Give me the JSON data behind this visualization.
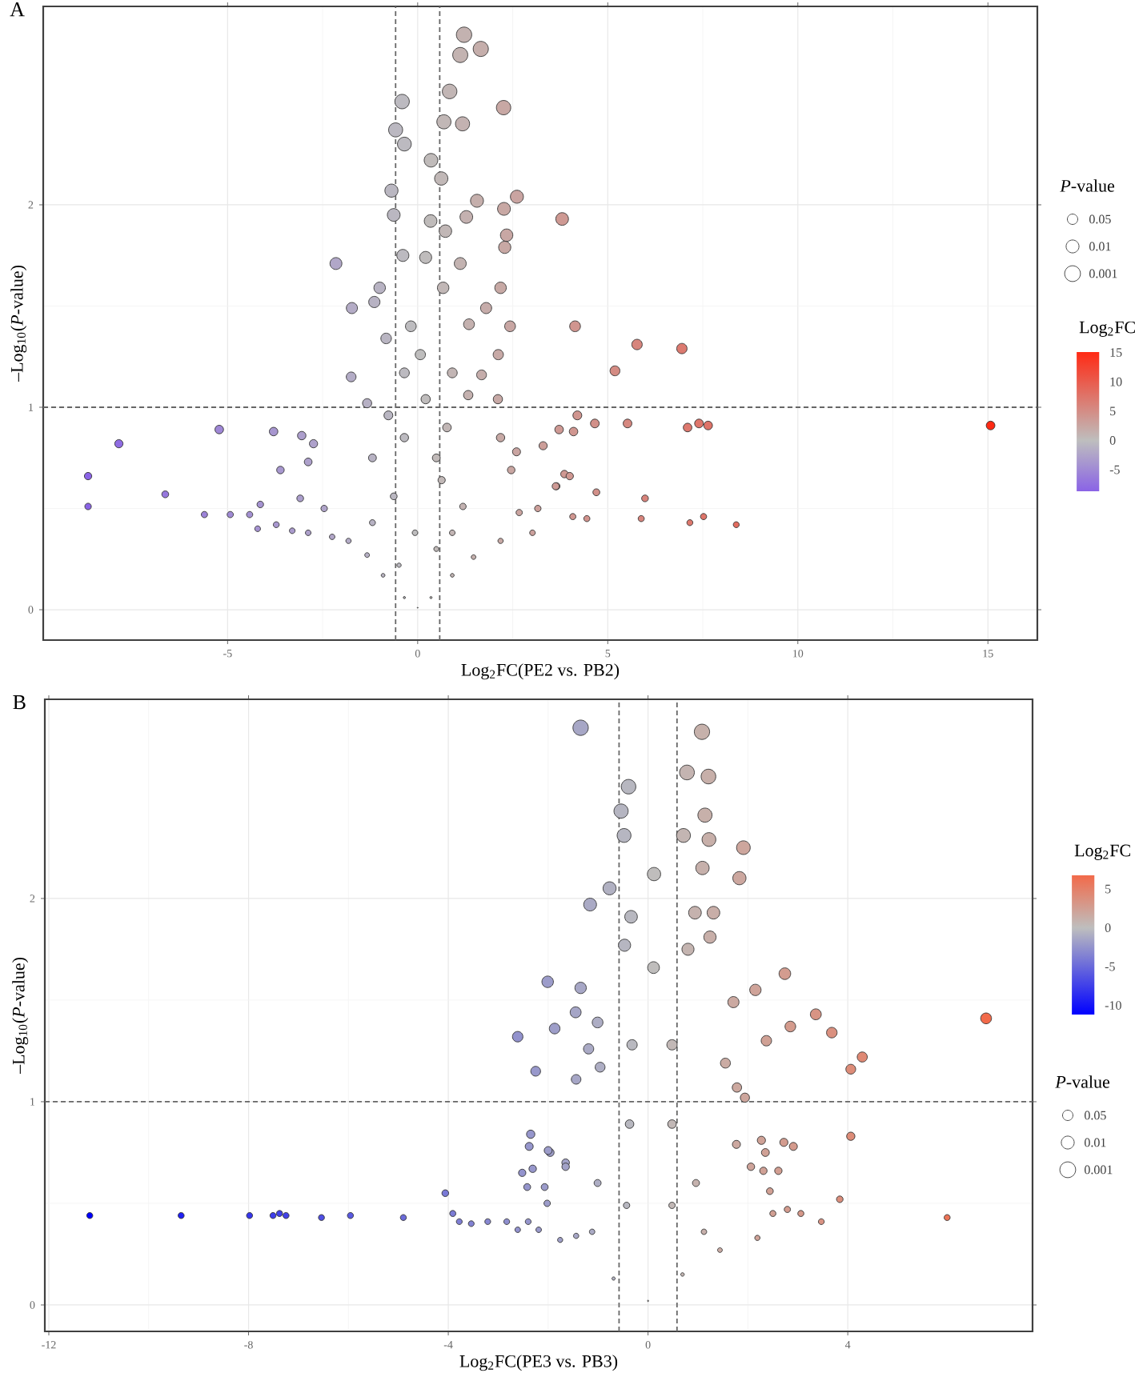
{
  "chart_data": [
    {
      "type": "bubble",
      "title": "A",
      "xlabel": "Log$_{2}$FC(PE2 vs. PB2)",
      "ylabel": "–Log$_{10}$(*P*-value)",
      "legend_title": "*P*-value",
      "clabel": "Log$_{2}$FC",
      "grid": true,
      "xlim": [
        -9.85,
        16.3
      ],
      "ylim": [
        -0.15,
        2.98
      ],
      "xticks": [
        -5,
        0,
        5,
        10,
        15
      ],
      "yticks": [
        0,
        1,
        2
      ],
      "clim": [
        -8.67,
        15.07
      ],
      "cticks": [
        -5,
        0,
        5,
        10,
        15
      ],
      "size_legend": [
        {
          "value": 1.3,
          "label": "0.05"
        },
        {
          "value": 2,
          "label": "0.01"
        },
        {
          "value": 3,
          "label": "0.001"
        }
      ],
      "ref_lines": [
        {
          "axis": "x",
          "value": -0.58,
          "line_style": "dashed"
        },
        {
          "axis": "x",
          "value": 0.58,
          "line_style": "dashed"
        },
        {
          "axis": "y",
          "value": 1,
          "line_style": "dashed"
        }
      ],
      "x": [
        1.22,
        1.66,
        1.12,
        0.84,
        -0.41,
        2.26,
        -0.58,
        0.69,
        1.18,
        -0.35,
        0.35,
        0.62,
        -0.69,
        2.61,
        1.56,
        2.27,
        -0.63,
        1.28,
        0.34,
        0.73,
        2.34,
        2.29,
        -2.15,
        -0.39,
        0.21,
        1.12,
        -1.0,
        0.67,
        2.18,
        -1.73,
        -1.14,
        1.8,
        -0.18,
        1.35,
        2.43,
        -0.83,
        0.07,
        2.12,
        -1.75,
        -0.35,
        0.91,
        1.68,
        -1.33,
        0.21,
        1.33,
        2.11,
        -5.22,
        -7.86,
        -3.79,
        -3.05,
        -2.74,
        -8.67,
        -8.67,
        -6.64,
        -3.61,
        -2.88,
        -5.61,
        -4.93,
        -4.42,
        -4.14,
        -4.21,
        -3.72,
        -3.3,
        -2.88,
        -3.09,
        -2.46,
        -2.25,
        -1.82,
        -1.33,
        -0.91,
        -0.35,
        0.0,
        0.35,
        0.91,
        1.47,
        2.18,
        3.02,
        2.67,
        3.16,
        3.3,
        2.6,
        2.18,
        2.46,
        3.65,
        3.86,
        -1.19,
        -0.63,
        -1.19,
        0.63,
        1.19,
        -0.07,
        0.49,
        -0.49,
        0.49,
        -0.35,
        0.77,
        -0.77,
        0.91,
        3.8,
        4.14,
        5.77,
        6.95,
        5.19,
        15.07,
        4.2,
        4.66,
        5.52,
        7.1,
        7.4,
        7.64,
        4.1,
        3.72,
        4.0,
        3.63,
        4.7,
        5.98,
        4.08,
        4.45,
        5.88,
        7.16,
        7.52,
        8.38
      ],
      "values": [
        2.84,
        2.77,
        2.74,
        2.56,
        2.51,
        2.48,
        2.37,
        2.41,
        2.4,
        2.3,
        2.22,
        2.13,
        2.07,
        2.04,
        2.02,
        1.98,
        1.95,
        1.94,
        1.92,
        1.87,
        1.85,
        1.79,
        1.71,
        1.75,
        1.74,
        1.71,
        1.59,
        1.59,
        1.59,
        1.49,
        1.52,
        1.49,
        1.4,
        1.41,
        1.4,
        1.34,
        1.26,
        1.26,
        1.15,
        1.17,
        1.17,
        1.16,
        1.02,
        1.04,
        1.06,
        1.04,
        0.89,
        0.82,
        0.88,
        0.86,
        0.82,
        0.66,
        0.51,
        0.57,
        0.69,
        0.73,
        0.47,
        0.47,
        0.47,
        0.52,
        0.4,
        0.42,
        0.39,
        0.38,
        0.55,
        0.5,
        0.36,
        0.34,
        0.27,
        0.17,
        0.06,
        0.01,
        0.06,
        0.17,
        0.26,
        0.34,
        0.38,
        0.48,
        0.5,
        0.81,
        0.78,
        0.85,
        0.69,
        0.61,
        0.67,
        0.75,
        0.56,
        0.43,
        0.64,
        0.51,
        0.38,
        0.3,
        0.22,
        0.75,
        0.85,
        0.9,
        0.96,
        0.38,
        1.93,
        1.4,
        1.31,
        1.29,
        1.18,
        0.91,
        0.96,
        0.92,
        0.92,
        0.9,
        0.92,
        0.91,
        0.88,
        0.89,
        0.66,
        0.61,
        0.58,
        0.55,
        0.46,
        0.45,
        0.45,
        0.43,
        0.46,
        0.42
      ],
      "sizes": [
        2.84,
        2.77,
        2.74,
        2.56,
        2.51,
        2.48,
        2.37,
        2.41,
        2.4,
        2.3,
        2.22,
        2.13,
        2.07,
        2.04,
        2.02,
        1.98,
        1.95,
        1.94,
        1.92,
        1.87,
        1.85,
        1.79,
        1.71,
        1.75,
        1.74,
        1.71,
        1.59,
        1.59,
        1.59,
        1.49,
        1.52,
        1.49,
        1.4,
        1.41,
        1.4,
        1.34,
        1.26,
        1.26,
        1.15,
        1.17,
        1.17,
        1.16,
        1.02,
        1.04,
        1.06,
        1.04,
        0.89,
        0.82,
        0.88,
        0.86,
        0.82,
        0.66,
        0.51,
        0.57,
        0.69,
        0.73,
        0.47,
        0.47,
        0.47,
        0.52,
        0.4,
        0.42,
        0.39,
        0.38,
        0.55,
        0.5,
        0.36,
        0.34,
        0.27,
        0.17,
        0.06,
        0.01,
        0.06,
        0.17,
        0.26,
        0.34,
        0.38,
        0.48,
        0.5,
        0.81,
        0.78,
        0.85,
        0.69,
        0.61,
        0.67,
        0.75,
        0.56,
        0.43,
        0.64,
        0.51,
        0.38,
        0.3,
        0.22,
        0.75,
        0.85,
        0.9,
        0.96,
        0.38,
        1.93,
        1.4,
        1.31,
        1.29,
        1.18,
        0.91,
        0.96,
        0.92,
        0.92,
        0.9,
        0.92,
        0.91,
        0.88,
        0.89,
        0.66,
        0.61,
        0.58,
        0.55,
        0.46,
        0.45,
        0.45,
        0.43,
        0.46,
        0.42
      ],
      "cvalues": [
        1.22,
        1.66,
        1.12,
        0.84,
        -0.41,
        2.26,
        -0.58,
        0.69,
        1.18,
        -0.35,
        0.35,
        0.62,
        -0.69,
        2.61,
        1.56,
        2.27,
        -0.63,
        1.28,
        0.34,
        0.73,
        2.34,
        2.29,
        -2.15,
        -0.39,
        0.21,
        1.12,
        -1.0,
        0.67,
        2.18,
        -1.73,
        -1.14,
        1.8,
        -0.18,
        1.35,
        2.43,
        -0.83,
        0.07,
        2.12,
        -1.75,
        -0.35,
        0.91,
        1.68,
        -1.33,
        0.21,
        1.33,
        2.11,
        -5.22,
        -7.86,
        -3.79,
        -3.05,
        -2.74,
        -8.67,
        -8.67,
        -6.64,
        -3.61,
        -2.88,
        -5.61,
        -4.93,
        -4.42,
        -4.14,
        -4.21,
        -3.72,
        -3.3,
        -2.88,
        -3.09,
        -2.46,
        -2.25,
        -1.82,
        -1.33,
        -0.91,
        -0.35,
        0.0,
        0.35,
        0.91,
        1.47,
        2.18,
        3.02,
        2.67,
        3.16,
        3.3,
        2.6,
        2.18,
        2.46,
        3.65,
        3.86,
        -1.19,
        -0.63,
        -1.19,
        0.63,
        1.19,
        -0.07,
        0.49,
        -0.49,
        0.49,
        -0.35,
        0.77,
        -0.77,
        0.91,
        3.8,
        4.14,
        5.77,
        6.95,
        5.19,
        15.07,
        4.2,
        4.66,
        5.52,
        7.1,
        7.4,
        7.64,
        4.1,
        3.72,
        4.0,
        3.63,
        4.7,
        5.98,
        4.08,
        4.45,
        5.88,
        7.16,
        7.52,
        8.38
      ]
    },
    {
      "type": "bubble",
      "title": "B",
      "xlabel": "Log$_{2}$FC(PE3 vs. PB3)",
      "ylabel": "–Log$_{10}$(*P*-value)",
      "legend_title": "*P*-value",
      "clabel": "Log$_{2}$FC",
      "grid": true,
      "xlim": [
        -12.08,
        7.7
      ],
      "ylim": [
        -0.13,
        2.98
      ],
      "xticks": [
        -12,
        -8,
        -4,
        0,
        4
      ],
      "yticks": [
        0,
        1,
        2
      ],
      "clim": [
        -11.18,
        6.77
      ],
      "cticks": [
        -10,
        -5,
        0,
        5
      ],
      "size_legend": [
        {
          "value": 1.3,
          "label": "0.05"
        },
        {
          "value": 2,
          "label": "0.01"
        },
        {
          "value": 3,
          "label": "0.001"
        }
      ],
      "ref_lines": [
        {
          "axis": "x",
          "value": -0.58,
          "line_style": "dashed"
        },
        {
          "axis": "x",
          "value": 0.58,
          "line_style": "dashed"
        },
        {
          "axis": "y",
          "value": 1,
          "line_style": "dashed"
        }
      ],
      "x": [
        -11.18,
        -9.35,
        -7.98,
        -7.51,
        -7.38,
        -7.25,
        -6.54,
        -5.96,
        -4.9,
        -4.06,
        -3.91,
        -3.78,
        -3.54,
        -3.21,
        -2.83,
        -2.61,
        -2.01,
        -1.87,
        -2.61,
        -2.25,
        -2.35,
        -2.38,
        -1.96,
        -2.52,
        -2.31,
        -2.42,
        -2.07,
        -2.02,
        -2.4,
        -2.19,
        -1.76,
        -1.65,
        -1.35,
        1.08,
        0.78,
        1.21,
        -0.39,
        -0.54,
        1.14,
        -0.48,
        0.71,
        1.22,
        1.91,
        1.09,
        1.83,
        0.12,
        -0.77,
        -1.16,
        -0.34,
        0.94,
        1.31,
        1.24,
        -0.47,
        0.8,
        0.11,
        2.74,
        2.15,
        -1.35,
        1.71,
        3.36,
        6.77,
        2.85,
        3.68,
        2.37,
        4.29,
        4.06,
        -1.45,
        -1.01,
        -1.19,
        -0.96,
        -1.44,
        1.55,
        1.78,
        1.94,
        4.06,
        2.27,
        2.72,
        2.91,
        1.77,
        2.35,
        2.06,
        2.61,
        2.31,
        2.44,
        3.84,
        5.99,
        3.47,
        3.06,
        2.79,
        2.5,
        2.19,
        1.44,
        -2.0,
        -1.65,
        -1.44,
        -0.69,
        0.0,
        0.69,
        -0.43,
        0.48,
        -0.37,
        0.48,
        -0.32,
        0.48,
        0.96,
        -1.01,
        1.12,
        -1.12
      ],
      "values": [
        0.44,
        0.44,
        0.44,
        0.44,
        0.45,
        0.44,
        0.43,
        0.44,
        0.43,
        0.55,
        0.45,
        0.41,
        0.4,
        0.41,
        0.41,
        0.37,
        1.59,
        1.36,
        1.32,
        1.15,
        0.84,
        0.78,
        0.75,
        0.65,
        0.67,
        0.58,
        0.58,
        0.5,
        0.41,
        0.37,
        0.32,
        0.7,
        2.84,
        2.82,
        2.62,
        2.6,
        2.55,
        2.43,
        2.41,
        2.31,
        2.31,
        2.29,
        2.25,
        2.15,
        2.1,
        2.12,
        2.05,
        1.97,
        1.91,
        1.93,
        1.93,
        1.81,
        1.77,
        1.75,
        1.66,
        1.63,
        1.55,
        1.56,
        1.49,
        1.43,
        1.41,
        1.37,
        1.34,
        1.3,
        1.22,
        1.16,
        1.44,
        1.39,
        1.26,
        1.17,
        1.11,
        1.19,
        1.07,
        1.02,
        0.83,
        0.81,
        0.8,
        0.78,
        0.79,
        0.75,
        0.68,
        0.66,
        0.66,
        0.56,
        0.52,
        0.43,
        0.41,
        0.45,
        0.47,
        0.45,
        0.33,
        0.27,
        0.76,
        0.68,
        0.34,
        0.13,
        0.02,
        0.15,
        0.49,
        0.49,
        0.89,
        0.89,
        1.28,
        1.28,
        0.6,
        0.6,
        0.36,
        0.36
      ],
      "sizes": [
        0.44,
        0.44,
        0.44,
        0.44,
        0.45,
        0.44,
        0.43,
        0.44,
        0.43,
        0.55,
        0.45,
        0.41,
        0.4,
        0.41,
        0.41,
        0.37,
        1.59,
        1.36,
        1.32,
        1.15,
        0.84,
        0.78,
        0.75,
        0.65,
        0.67,
        0.58,
        0.58,
        0.5,
        0.41,
        0.37,
        0.32,
        0.7,
        2.84,
        2.82,
        2.62,
        2.6,
        2.55,
        2.43,
        2.41,
        2.31,
        2.31,
        2.29,
        2.25,
        2.15,
        2.1,
        2.12,
        2.05,
        1.97,
        1.91,
        1.93,
        1.93,
        1.81,
        1.77,
        1.75,
        1.66,
        1.63,
        1.55,
        1.56,
        1.49,
        1.43,
        1.41,
        1.37,
        1.34,
        1.3,
        1.22,
        1.16,
        1.44,
        1.39,
        1.26,
        1.17,
        1.11,
        1.19,
        1.07,
        1.02,
        0.83,
        0.81,
        0.8,
        0.78,
        0.79,
        0.75,
        0.68,
        0.66,
        0.66,
        0.56,
        0.52,
        0.43,
        0.41,
        0.45,
        0.47,
        0.45,
        0.33,
        0.27,
        0.76,
        0.68,
        0.34,
        0.13,
        0.02,
        0.15,
        0.49,
        0.49,
        0.89,
        0.89,
        1.28,
        1.28,
        0.6,
        0.6,
        0.36,
        0.36
      ],
      "cvalues": [
        -11.18,
        -9.35,
        -7.98,
        -7.51,
        -7.38,
        -7.25,
        -6.54,
        -5.96,
        -4.9,
        -4.06,
        -3.91,
        -3.78,
        -3.54,
        -3.21,
        -2.83,
        -2.61,
        -2.01,
        -1.87,
        -2.61,
        -2.25,
        -2.35,
        -2.38,
        -1.96,
        -2.52,
        -2.31,
        -2.42,
        -2.07,
        -2.02,
        -2.4,
        -2.19,
        -1.76,
        -1.65,
        -1.35,
        1.08,
        0.78,
        1.21,
        -0.39,
        -0.54,
        1.14,
        -0.48,
        0.71,
        1.22,
        1.91,
        1.09,
        1.83,
        0.12,
        -0.77,
        -1.16,
        -0.34,
        0.94,
        1.31,
        1.24,
        -0.47,
        0.8,
        0.11,
        2.74,
        2.15,
        -1.35,
        1.71,
        3.36,
        6.77,
        2.85,
        3.68,
        2.37,
        4.29,
        4.06,
        -1.45,
        -1.01,
        -1.19,
        -0.96,
        -1.44,
        1.55,
        1.78,
        1.94,
        4.06,
        2.27,
        2.72,
        2.91,
        1.77,
        2.35,
        2.06,
        2.61,
        2.31,
        2.44,
        3.84,
        5.99,
        3.47,
        3.06,
        2.79,
        2.5,
        2.19,
        1.44,
        -2.0,
        -1.65,
        -1.44,
        -0.69,
        0.0,
        0.69,
        -0.43,
        0.48,
        -0.37,
        0.48,
        -0.32,
        0.48,
        0.96,
        -1.01,
        1.12,
        -1.12
      ]
    }
  ]
}
